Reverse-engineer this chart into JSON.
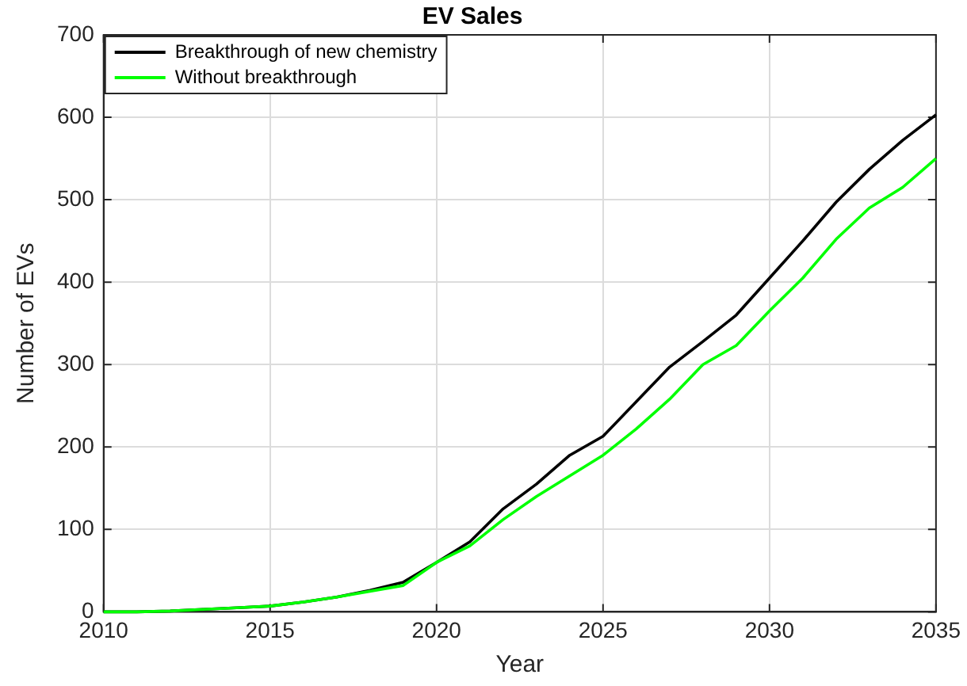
{
  "chart_data": {
    "type": "line",
    "title": "EV Sales",
    "xlabel": "Year",
    "ylabel": "Number of EVs",
    "x": [
      2010,
      2011,
      2012,
      2013,
      2014,
      2015,
      2016,
      2017,
      2018,
      2019,
      2020,
      2021,
      2022,
      2023,
      2024,
      2025,
      2026,
      2027,
      2028,
      2029,
      2030,
      2031,
      2032,
      2033,
      2034,
      2035
    ],
    "series": [
      {
        "name": "Breakthrough of new chemistry",
        "color": "#000000",
        "values": [
          0,
          0,
          1,
          3,
          5,
          7,
          12,
          18,
          26,
          36,
          60,
          85,
          125,
          155,
          190,
          213,
          255,
          297,
          328,
          360,
          405,
          450,
          497,
          537,
          572,
          603
        ]
      },
      {
        "name": "Without breakthrough",
        "color": "#00ff00",
        "values": [
          0,
          0,
          1,
          3,
          5,
          7,
          12,
          18,
          25,
          32,
          60,
          80,
          112,
          140,
          165,
          190,
          222,
          258,
          300,
          323,
          365,
          405,
          452,
          490,
          515,
          550
        ]
      }
    ],
    "xlim": [
      2010,
      2035
    ],
    "xticks": [
      2010,
      2015,
      2020,
      2025,
      2030,
      2035
    ],
    "ylim": [
      0,
      700
    ],
    "yticks": [
      0,
      100,
      200,
      300,
      400,
      500,
      600,
      700
    ],
    "grid": true,
    "legend": "top left",
    "marker": "none",
    "line_style": "solid"
  }
}
